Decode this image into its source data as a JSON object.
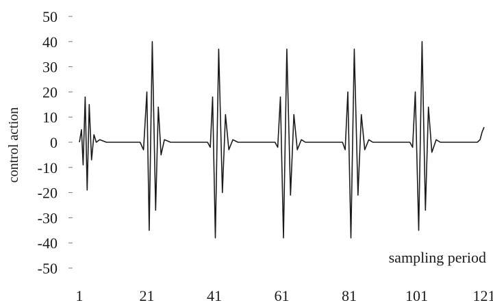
{
  "chart_data": {
    "type": "line",
    "title": "",
    "xlabel": "sampling period",
    "ylabel": "control action",
    "x_ticks": [
      "1",
      "21",
      "41",
      "61",
      "81",
      "101",
      "121"
    ],
    "y_ticks": [
      "50",
      "40",
      "30",
      "20",
      "10",
      "0",
      "-10",
      "-20",
      "-30",
      "-40",
      "-50"
    ],
    "xlim": [
      1,
      121
    ],
    "ylim": [
      -50,
      50
    ],
    "grid": false,
    "legend": "none",
    "line_color": "#1a1a1a",
    "series": [
      {
        "points": [
          [
            1,
            0
          ],
          [
            1.6,
            5
          ],
          [
            2.1,
            -9
          ],
          [
            2.7,
            18
          ],
          [
            3.3,
            -19
          ],
          [
            3.9,
            15
          ],
          [
            4.6,
            -7
          ],
          [
            5.3,
            3
          ],
          [
            6,
            0
          ],
          [
            7,
            1
          ],
          [
            9,
            0
          ],
          [
            19,
            0
          ],
          [
            20,
            -3
          ],
          [
            21,
            20
          ],
          [
            21.7,
            -35
          ],
          [
            22.6,
            40
          ],
          [
            23.6,
            -27
          ],
          [
            24.4,
            14
          ],
          [
            25.2,
            -5
          ],
          [
            26.2,
            1
          ],
          [
            28,
            0
          ],
          [
            39,
            0
          ],
          [
            39.8,
            -2
          ],
          [
            40.5,
            18
          ],
          [
            41.3,
            -38
          ],
          [
            42.3,
            37
          ],
          [
            43.4,
            -20
          ],
          [
            44.3,
            11
          ],
          [
            45.3,
            -3
          ],
          [
            46.5,
            1
          ],
          [
            48,
            0
          ],
          [
            59,
            0
          ],
          [
            59.8,
            -2
          ],
          [
            60.6,
            18
          ],
          [
            61.5,
            -38
          ],
          [
            62.5,
            37
          ],
          [
            63.6,
            -21
          ],
          [
            64.6,
            11
          ],
          [
            65.6,
            -3
          ],
          [
            66.8,
            1
          ],
          [
            68,
            0
          ],
          [
            79,
            0
          ],
          [
            79.8,
            -3
          ],
          [
            80.6,
            20
          ],
          [
            81.5,
            -38
          ],
          [
            82.5,
            37
          ],
          [
            83.6,
            -21
          ],
          [
            84.6,
            11
          ],
          [
            85.6,
            -3
          ],
          [
            86.8,
            1
          ],
          [
            88,
            0
          ],
          [
            99,
            0
          ],
          [
            99.8,
            -2
          ],
          [
            100.6,
            20
          ],
          [
            101.6,
            -35
          ],
          [
            102.6,
            40
          ],
          [
            103.6,
            -27
          ],
          [
            104.5,
            14
          ],
          [
            105.5,
            -4
          ],
          [
            106.8,
            1
          ],
          [
            108,
            0
          ],
          [
            119,
            0
          ],
          [
            119.8,
            1
          ],
          [
            120.4,
            4
          ],
          [
            121,
            6
          ]
        ]
      }
    ]
  }
}
